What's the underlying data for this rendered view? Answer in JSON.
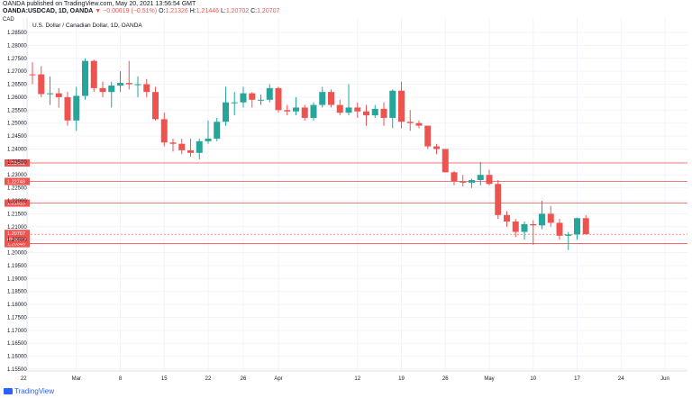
{
  "header": {
    "line1": "OANDA published on TradingView.com, May 20, 2021 13:56:54 GMT",
    "symbol": "OANDA:USDCAD, 1D, OANDA",
    "change": "▼ −0.00619 (−0.51%)",
    "o_label": "O:",
    "o_value": "1.21326",
    "h_label": "H:",
    "h_value": "1.21446",
    "l_label": "L:",
    "l_value": "1.20702",
    "c_label": "C:",
    "c_value": "1.20707",
    "unit": "CAD"
  },
  "footer": {
    "brand": "TradingView"
  },
  "colors": {
    "up": "#26a69a",
    "down": "#ef5350",
    "hline": "#ef5350",
    "grid": "#f0f3fa",
    "axis": "#e0e3eb"
  },
  "chart_data": {
    "type": "candlestick",
    "title": "U.S. Dollar / Canadian Dollar, 1D, OANDA",
    "ylim": [
      1.153,
      1.2885
    ],
    "y_ticks": [
      "1.28500",
      "1.28000",
      "1.27500",
      "1.27000",
      "1.26500",
      "1.26000",
      "1.25500",
      "1.25000",
      "1.24500",
      "1.24000",
      "1.23500",
      "1.23000",
      "1.22500",
      "1.22000",
      "1.21500",
      "1.21000",
      "1.20500",
      "1.20000",
      "1.19500",
      "1.19000",
      "1.18500",
      "1.18000",
      "1.17500",
      "1.17000",
      "1.16500",
      "1.16000",
      "1.15500"
    ],
    "x_ticks": [
      {
        "label": "22",
        "x": -1
      },
      {
        "label": "Mar",
        "x": 5
      },
      {
        "label": "8",
        "x": 10
      },
      {
        "label": "15",
        "x": 15
      },
      {
        "label": "22",
        "x": 20
      },
      {
        "label": "26",
        "x": 24
      },
      {
        "label": "Apr",
        "x": 28
      },
      {
        "label": "12",
        "x": 37
      },
      {
        "label": "19",
        "x": 42
      },
      {
        "label": "26",
        "x": 47
      },
      {
        "label": "May",
        "x": 52
      },
      {
        "label": "10",
        "x": 57
      },
      {
        "label": "17",
        "x": 62
      },
      {
        "label": "24",
        "x": 67
      },
      {
        "label": "Jun",
        "x": 72
      }
    ],
    "candles": [
      [
        1.2688,
        1.2735,
        1.265,
        1.2685
      ],
      [
        1.2688,
        1.272,
        1.26,
        1.2612
      ],
      [
        1.2612,
        1.268,
        1.257,
        1.2615
      ],
      [
        1.2615,
        1.2635,
        1.256,
        1.26
      ],
      [
        1.26,
        1.262,
        1.249,
        1.251
      ],
      [
        1.251,
        1.264,
        1.247,
        1.2605
      ],
      [
        1.2605,
        1.275,
        1.259,
        1.274
      ],
      [
        1.274,
        1.2745,
        1.262,
        1.2635
      ],
      [
        1.2635,
        1.266,
        1.26,
        1.262
      ],
      [
        1.262,
        1.266,
        1.256,
        1.2645
      ],
      [
        1.2645,
        1.27,
        1.262,
        1.2655
      ],
      [
        1.2655,
        1.274,
        1.263,
        1.265
      ],
      [
        1.265,
        1.268,
        1.26,
        1.265
      ],
      [
        1.265,
        1.267,
        1.26,
        1.262
      ],
      [
        1.262,
        1.264,
        1.251,
        1.2515
      ],
      [
        1.2515,
        1.254,
        1.241,
        1.2425
      ],
      [
        1.2425,
        1.244,
        1.239,
        1.242
      ],
      [
        1.242,
        1.244,
        1.238,
        1.2395
      ],
      [
        1.2395,
        1.244,
        1.237,
        1.2385
      ],
      [
        1.2385,
        1.244,
        1.236,
        1.243
      ],
      [
        1.243,
        1.251,
        1.242,
        1.244
      ],
      [
        1.244,
        1.252,
        1.243,
        1.2505
      ],
      [
        1.2505,
        1.264,
        1.249,
        1.258
      ],
      [
        1.258,
        1.262,
        1.253,
        1.258
      ],
      [
        1.258,
        1.264,
        1.256,
        1.2615
      ],
      [
        1.2615,
        1.262,
        1.256,
        1.259
      ],
      [
        1.259,
        1.261,
        1.257,
        1.259
      ],
      [
        1.259,
        1.265,
        1.258,
        1.2635
      ],
      [
        1.2635,
        1.264,
        1.254,
        1.255
      ],
      [
        1.255,
        1.257,
        1.253,
        1.2545
      ],
      [
        1.2545,
        1.26,
        1.253,
        1.256
      ],
      [
        1.256,
        1.257,
        1.251,
        1.252
      ],
      [
        1.252,
        1.258,
        1.251,
        1.257
      ],
      [
        1.257,
        1.264,
        1.256,
        1.262
      ],
      [
        1.262,
        1.263,
        1.256,
        1.257
      ],
      [
        1.257,
        1.259,
        1.253,
        1.254
      ],
      [
        1.254,
        1.265,
        1.253,
        1.256
      ],
      [
        1.256,
        1.258,
        1.252,
        1.2545
      ],
      [
        1.2545,
        1.257,
        1.249,
        1.253
      ],
      [
        1.253,
        1.257,
        1.252,
        1.2555
      ],
      [
        1.2555,
        1.258,
        1.249,
        1.252
      ],
      [
        1.252,
        1.263,
        1.248,
        1.2625
      ],
      [
        1.2625,
        1.266,
        1.248,
        1.2505
      ],
      [
        1.2505,
        1.255,
        1.247,
        1.25
      ],
      [
        1.25,
        1.251,
        1.248,
        1.249
      ],
      [
        1.249,
        1.249,
        1.24,
        1.241
      ],
      [
        1.241,
        1.242,
        1.238,
        1.24
      ],
      [
        1.24,
        1.24,
        1.231,
        1.231
      ],
      [
        1.231,
        1.2315,
        1.226,
        1.2275
      ],
      [
        1.2275,
        1.23,
        1.2255,
        1.227
      ],
      [
        1.227,
        1.2285,
        1.225,
        1.228
      ],
      [
        1.228,
        1.235,
        1.226,
        1.23
      ],
      [
        1.23,
        1.232,
        1.226,
        1.2265
      ],
      [
        1.2265,
        1.228,
        1.213,
        1.2145
      ],
      [
        1.2145,
        1.216,
        1.21,
        1.212
      ],
      [
        1.212,
        1.213,
        1.206,
        1.208
      ],
      [
        1.208,
        1.212,
        1.205,
        1.211
      ],
      [
        1.211,
        1.2125,
        1.203,
        1.2105
      ],
      [
        1.2105,
        1.22,
        1.209,
        1.215
      ],
      [
        1.215,
        1.218,
        1.21,
        1.2115
      ],
      [
        1.2115,
        1.213,
        1.205,
        1.2065
      ],
      [
        1.2065,
        1.208,
        1.201,
        1.207
      ],
      [
        1.207,
        1.2135,
        1.205,
        1.2133
      ],
      [
        1.2133,
        1.2145,
        1.207,
        1.2071
      ]
    ],
    "candle_slot_offset": -3,
    "h_levels": [
      "1.23461",
      "1.22748",
      "1.21910",
      "1.20346"
    ],
    "last_price": "1.20707",
    "last_price_countdown": "07:03:07"
  }
}
